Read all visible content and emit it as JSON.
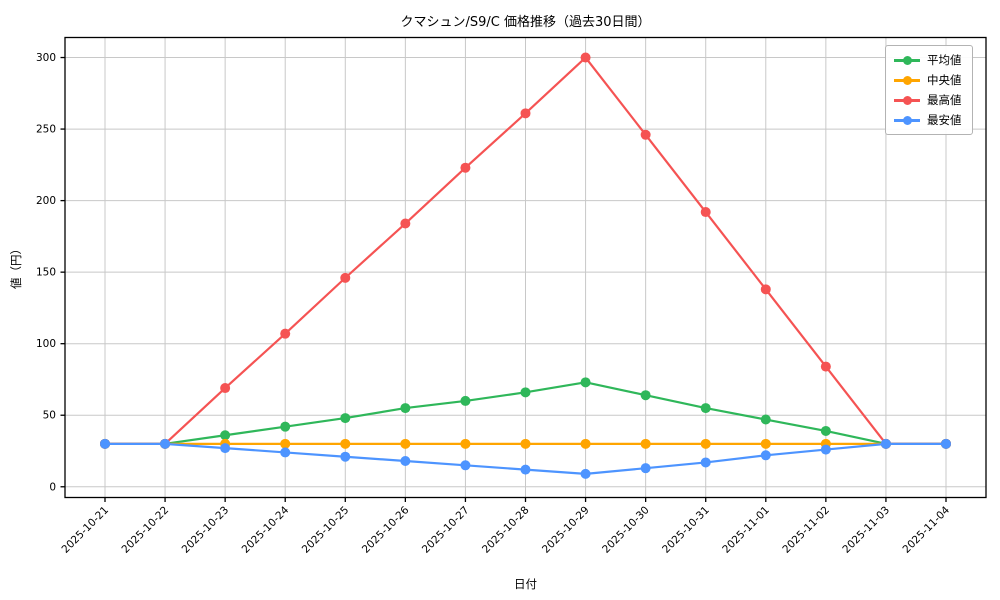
{
  "chart_data": {
    "type": "line",
    "title": "クマシュン/S9/C 価格推移（過去30日間）",
    "xlabel": "日付",
    "ylabel": "値（円）",
    "categories": [
      "2025-10-21",
      "2025-10-22",
      "2025-10-23",
      "2025-10-24",
      "2025-10-25",
      "2025-10-26",
      "2025-10-27",
      "2025-10-28",
      "2025-10-29",
      "2025-10-30",
      "2025-10-31",
      "2025-11-01",
      "2025-11-02",
      "2025-11-03",
      "2025-11-04"
    ],
    "series": [
      {
        "key": "average",
        "name": "平均値",
        "color": "#2fb75a",
        "values": [
          30,
          30,
          36,
          42,
          48,
          55,
          60,
          66,
          73,
          64,
          55,
          47,
          39,
          30,
          30
        ]
      },
      {
        "key": "median",
        "name": "中央値",
        "color": "#ffa500",
        "values": [
          30,
          30,
          30,
          30,
          30,
          30,
          30,
          30,
          30,
          30,
          30,
          30,
          30,
          30,
          30
        ]
      },
      {
        "key": "max",
        "name": "最高値",
        "color": "#f55353",
        "values": [
          30,
          30,
          69,
          107,
          146,
          184,
          223,
          261,
          300,
          246,
          192,
          138,
          84,
          30,
          30
        ]
      },
      {
        "key": "min",
        "name": "最安値",
        "color": "#4d94ff",
        "values": [
          30,
          30,
          27,
          24,
          21,
          18,
          15,
          12,
          9,
          13,
          17,
          22,
          26,
          30,
          30
        ]
      }
    ],
    "yticks": [
      0,
      50,
      100,
      150,
      200,
      250,
      300
    ],
    "ylim": [
      -7.5,
      314
    ],
    "grid": true,
    "legend_position": "top-right",
    "marker": "circle"
  },
  "colors": {
    "background": "#ffffff",
    "grid": "#c8c8c8",
    "spine": "#000000",
    "tick_text": "#000000",
    "legend_border": "#b3b3b3"
  }
}
